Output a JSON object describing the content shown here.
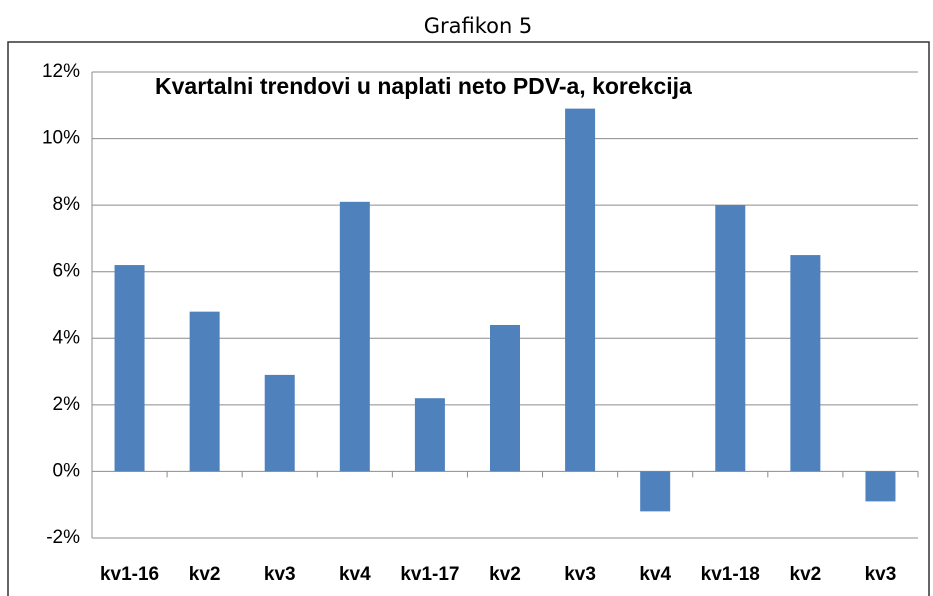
{
  "title": "Grafikon 5",
  "chart_data": {
    "type": "bar",
    "title": "Kvartalni trendovi u naplati neto PDV-a, korekcija",
    "categories": [
      "kv1-16",
      "kv2",
      "kv3",
      "kv4",
      "kv1-17",
      "kv2",
      "kv3",
      "kv4",
      "kv1-18",
      "kv2",
      "kv3"
    ],
    "values": [
      6.2,
      4.8,
      2.9,
      8.1,
      2.2,
      4.4,
      10.9,
      -1.2,
      8.0,
      6.5,
      -0.9
    ],
    "color": "#4f81bd",
    "ylim": [
      -2,
      12
    ],
    "yticks": [
      {
        "value": -2,
        "label": "-2%"
      },
      {
        "value": 0,
        "label": "0%"
      },
      {
        "value": 2,
        "label": "2%"
      },
      {
        "value": 4,
        "label": "4%"
      },
      {
        "value": 6,
        "label": "6%"
      },
      {
        "value": 8,
        "label": "8%"
      },
      {
        "value": 10,
        "label": "10%"
      },
      {
        "value": 12,
        "label": "12%"
      }
    ],
    "grid": true
  }
}
